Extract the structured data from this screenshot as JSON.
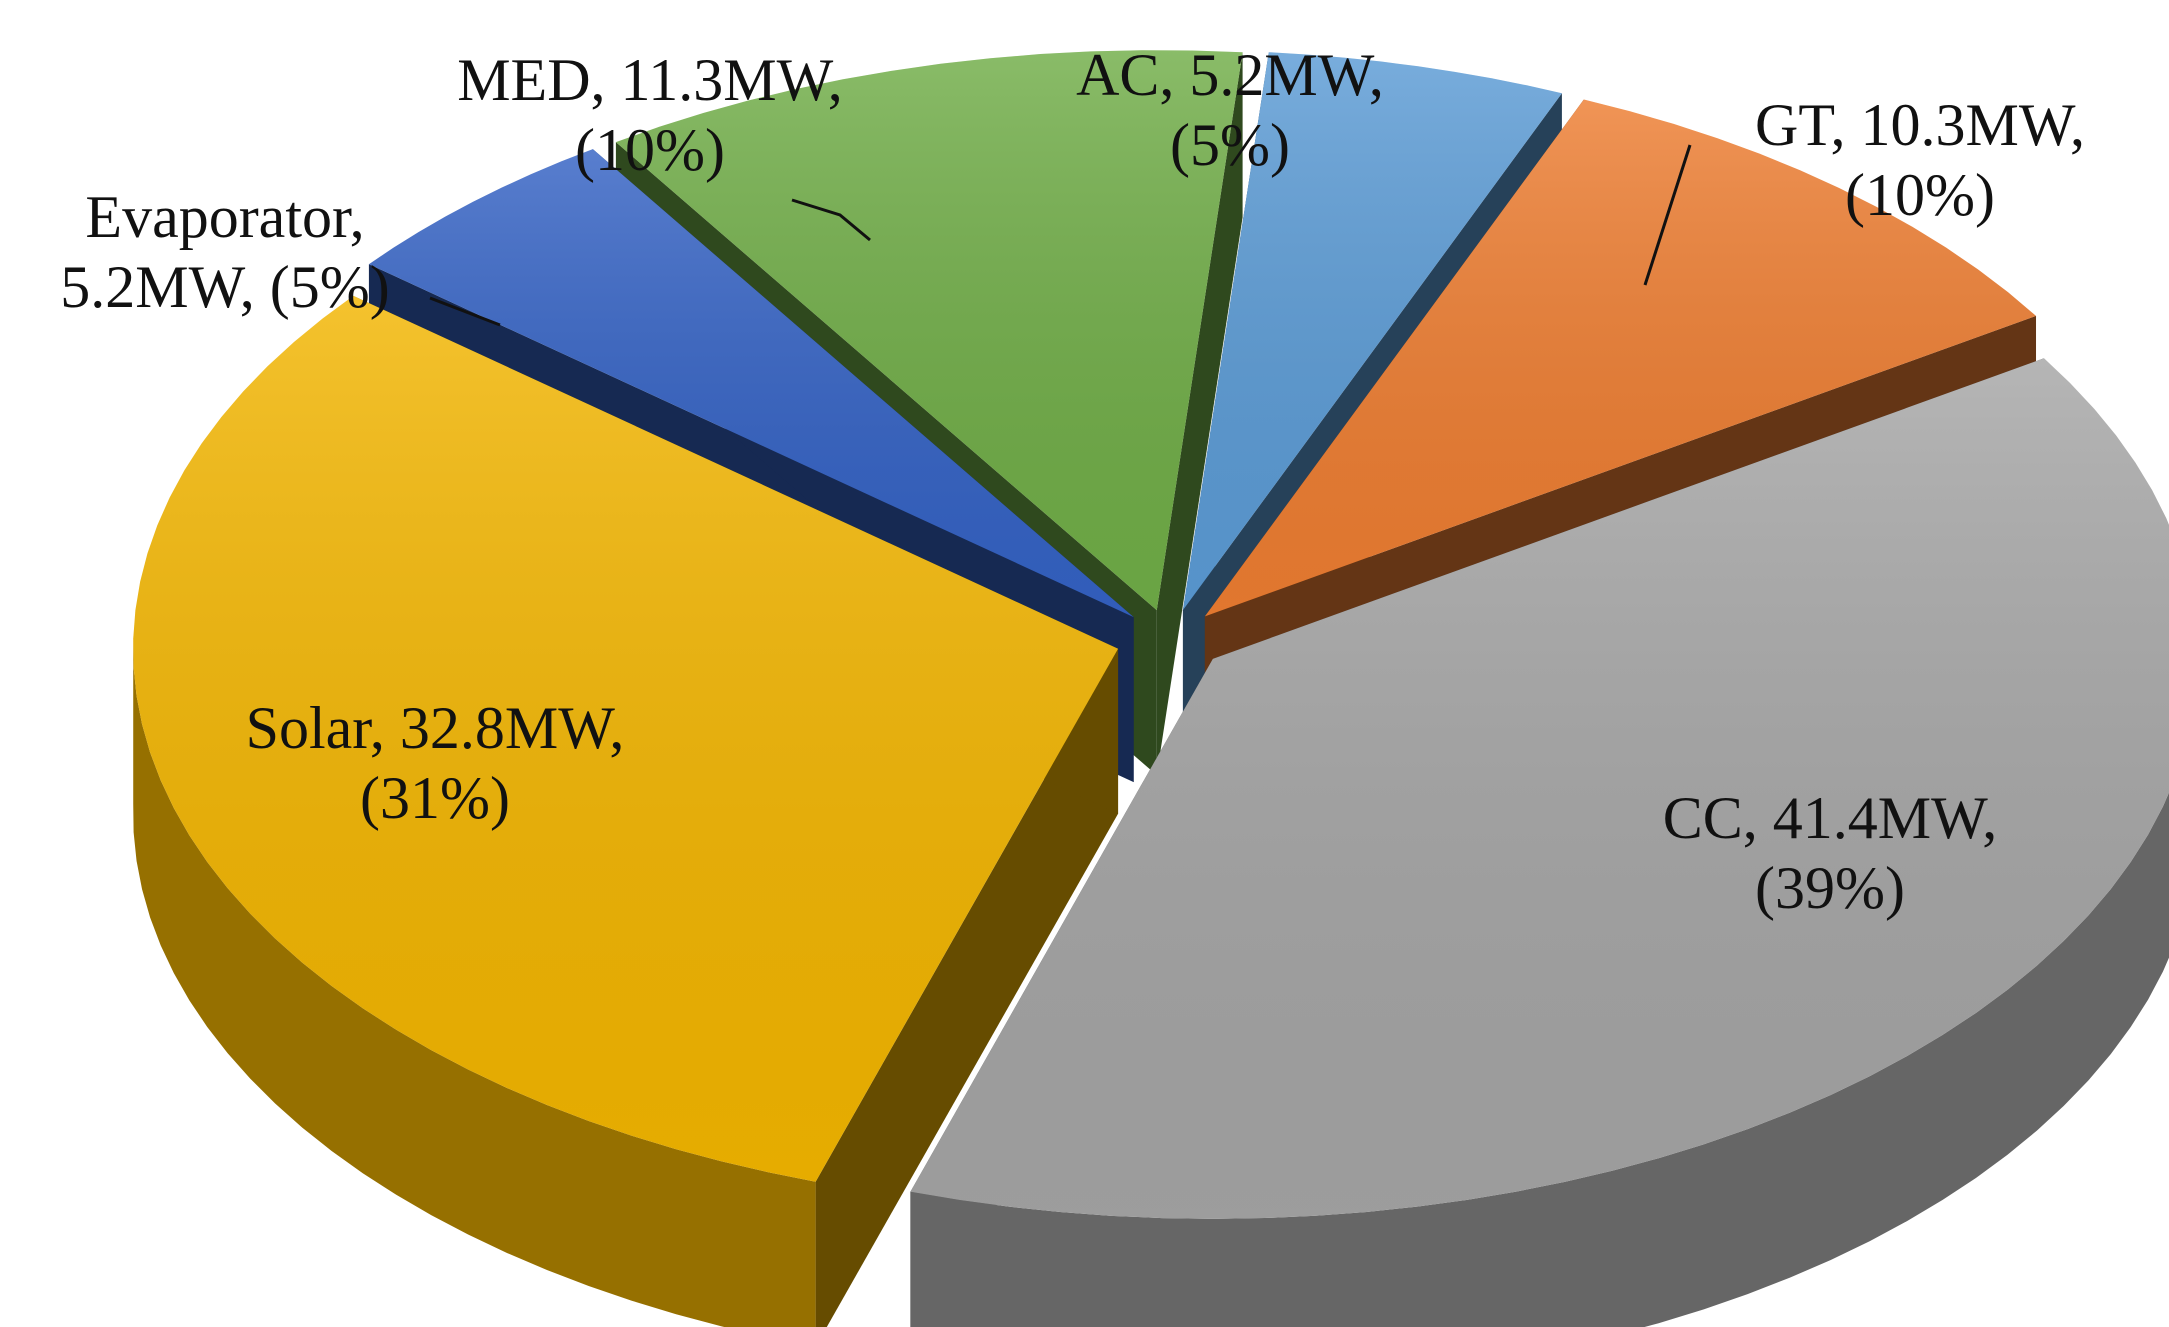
{
  "chart_data": {
    "type": "pie",
    "style": "3d-exploded",
    "unit": "MW",
    "legend": "none",
    "slices": [
      {
        "name": "AC",
        "value": 5.2,
        "percent": 5,
        "color": "#5B9BD5",
        "label_lines": [
          "AC, 5.2MW,",
          "(5%)"
        ]
      },
      {
        "name": "GT",
        "value": 10.3,
        "percent": 10,
        "color": "#ED7D31",
        "label_lines": [
          "GT, 10.3MW,",
          "(10%)"
        ]
      },
      {
        "name": "CC",
        "value": 41.4,
        "percent": 39,
        "color": "#A5A5A5",
        "label_lines": [
          "CC, 41.4MW,",
          "(39%)"
        ]
      },
      {
        "name": "Solar",
        "value": 32.8,
        "percent": 31,
        "color": "#F2B500",
        "label_lines": [
          "Solar, 32.8MW,",
          "(31%)"
        ]
      },
      {
        "name": "Evaporator",
        "value": 5.2,
        "percent": 5,
        "color": "#3462C4",
        "label_lines": [
          "Evaporator,",
          "5.2MW, (5%)"
        ]
      },
      {
        "name": "MED",
        "value": 11.3,
        "percent": 10,
        "color": "#70AD47",
        "label_lines": [
          "MED, 11.3MW,",
          "(10%)"
        ]
      }
    ]
  }
}
